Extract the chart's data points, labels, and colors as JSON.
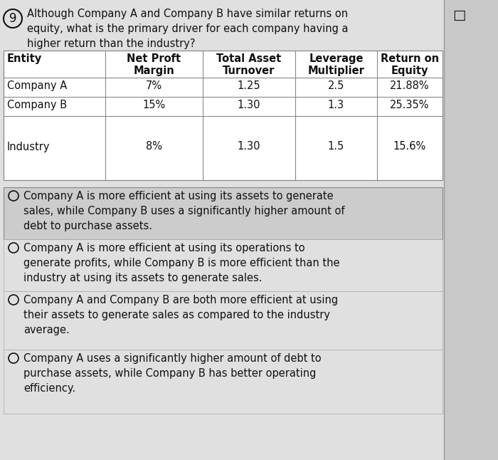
{
  "question_number": "9",
  "question_text": "Although Company A and Company B have similar returns on\nequity, what is the primary driver for each company having a\nhigher return than the industry?",
  "bookmark_symbol": "□",
  "table_headers": [
    "Entity",
    "Net Proft\nMargin",
    "Total Asset\nTurnover",
    "Leverage\nMultiplier",
    "Return on\nEquity"
  ],
  "table_rows": [
    [
      "Company A",
      "7%",
      "1.25",
      "2.5",
      "21.88%"
    ],
    [
      "Company B",
      "15%",
      "1.30",
      "1.3",
      "25.35%"
    ],
    [
      "Industry",
      "8%",
      "1.30",
      "1.5",
      "15.6%"
    ]
  ],
  "options": [
    "Company A is more efficient at using its assets to generate\nsales, while Company B uses a significantly higher amount of\ndebt to purchase assets.",
    "Company A is more efficient at using its operations to\ngenerate profits, while Company B is more efficient than the\nindustry at using its assets to generate sales.",
    "Company A and Company B are both more efficient at using\ntheir assets to generate sales as compared to the industry\naverage.",
    "Company A uses a significantly higher amount of debt to\npurchase assets, while Company B has better operating\nefficiency."
  ],
  "selected_option": 0,
  "bg_color": "#e0e0e0",
  "table_bg": "#ffffff",
  "option1_bg": "#cccccc",
  "option_bg": "#e0e0e0",
  "text_color": "#111111",
  "font_size": 10.5,
  "header_font_size": 10.5,
  "right_panel_color": "#c8c8c8"
}
